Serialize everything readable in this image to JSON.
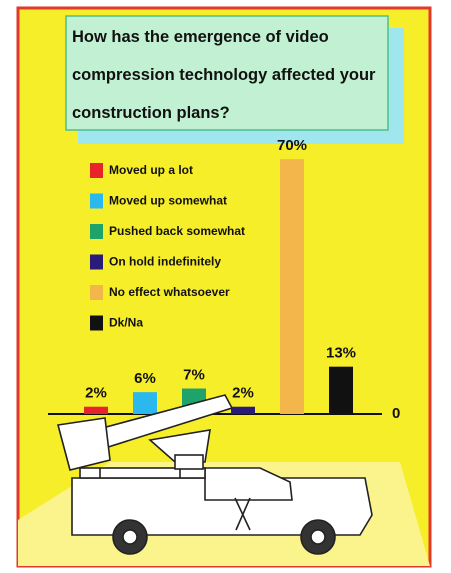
{
  "chart_data": {
    "type": "bar",
    "title": "How has the emergence of video compression technology affected your construction plans?",
    "categories": [
      "Moved up a lot",
      "Moved up somewhat",
      "Pushed back somewhat",
      "On hold indefinitely",
      "No effect whatsoever",
      "Dk/Na"
    ],
    "values": [
      2,
      6,
      7,
      2,
      70,
      13
    ],
    "value_labels": [
      "2%",
      "6%",
      "7%",
      "2%",
      "70%",
      "13%"
    ],
    "colors": [
      "#e8242a",
      "#2ab8ee",
      "#1ea36a",
      "#2a1a7a",
      "#f2b64a",
      "#111111"
    ],
    "yticks": [
      0
    ]
  }
}
